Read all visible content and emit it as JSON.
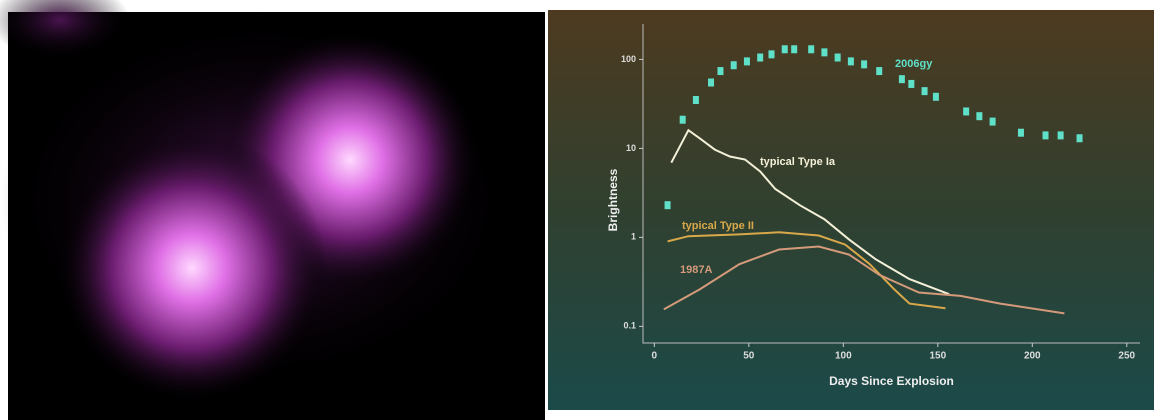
{
  "chart_data": {
    "type": "line",
    "y_label": "Brightness",
    "x_label": "Days Since Explosion",
    "xlim": [
      -6,
      257
    ],
    "xticks": [
      0,
      50,
      100,
      150,
      200,
      250
    ],
    "ylim": [
      0.065,
      250
    ],
    "yticks": [
      0.1,
      1,
      10,
      100
    ],
    "log_y": true,
    "series": [
      {
        "name": "2006gy",
        "color": "#5fe0c8",
        "mode": "markers",
        "x": [
          7,
          15,
          22,
          30,
          35,
          42,
          49,
          56,
          62,
          69,
          74,
          83,
          90,
          97,
          104,
          111,
          119,
          131,
          136,
          143,
          149,
          165,
          172,
          179,
          194,
          207,
          215,
          225
        ],
        "values": [
          2.3,
          21,
          35,
          55,
          74,
          86,
          95,
          105,
          114,
          130,
          130,
          130,
          120,
          105,
          95,
          88,
          74,
          60,
          53,
          44,
          38,
          26,
          23,
          20,
          15,
          14,
          14,
          13
        ]
      },
      {
        "name": "typical Type Ia",
        "color": "#f4f0d8",
        "mode": "line",
        "x": [
          9,
          18,
          24,
          32,
          40,
          48,
          56,
          64,
          77,
          90,
          103,
          117,
          135,
          156
        ],
        "values": [
          6.9,
          16,
          13,
          9.7,
          8.1,
          7.5,
          5.5,
          3.5,
          2.3,
          1.6,
          0.95,
          0.57,
          0.34,
          0.23
        ]
      },
      {
        "name": "typical Type II",
        "color": "#d9a84a",
        "mode": "line",
        "x": [
          7,
          18,
          45,
          66,
          87,
          101,
          114,
          127,
          135,
          154
        ],
        "values": [
          0.9,
          1.03,
          1.08,
          1.14,
          1.05,
          0.83,
          0.5,
          0.26,
          0.18,
          0.16
        ]
      },
      {
        "name": "1987A",
        "color": "#d49a7a",
        "mode": "line",
        "x": [
          5,
          24,
          45,
          66,
          87,
          103,
          119,
          140,
          162,
          183,
          217
        ],
        "values": [
          0.155,
          0.26,
          0.5,
          0.73,
          0.79,
          0.64,
          0.38,
          0.24,
          0.22,
          0.18,
          0.14
        ]
      }
    ]
  }
}
